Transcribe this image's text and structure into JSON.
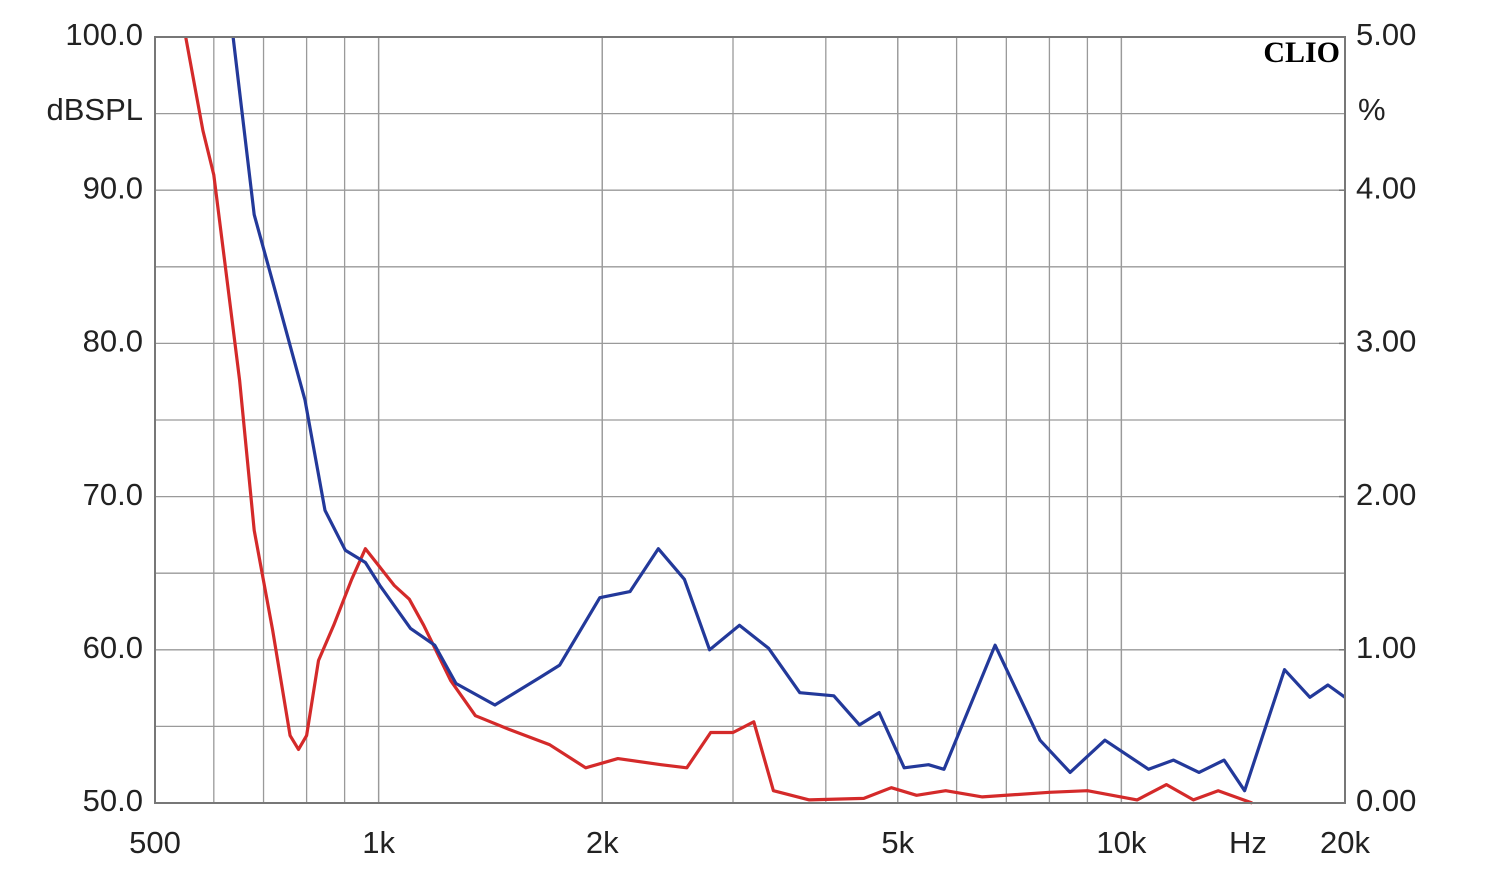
{
  "chart_data": {
    "type": "line",
    "log_x": true,
    "grid": true,
    "annotation": "CLIO",
    "y_label": "dBSPL",
    "y2_label": "%",
    "x_label": "Hz",
    "xlim": [
      500,
      20000
    ],
    "xticks": [
      500,
      {
        "value": 1000,
        "label": "1k"
      },
      {
        "value": 2000,
        "label": "2k"
      },
      {
        "value": 5000,
        "label": "5k"
      },
      {
        "value": 10000,
        "label": "10k"
      },
      {
        "value": 20000,
        "label": "20k"
      }
    ],
    "ylim": [
      50,
      100
    ],
    "yticks": [
      {
        "value": 50,
        "label": "50.0"
      },
      {
        "value": 60,
        "label": "60.0"
      },
      {
        "value": 70,
        "label": "70.0"
      },
      {
        "value": 80,
        "label": "80.0"
      },
      {
        "value": 90,
        "label": "90.0"
      },
      {
        "value": 100,
        "label": "100.0"
      }
    ],
    "y2lim": [
      0,
      5
    ],
    "y2ticks": [
      {
        "value": 0,
        "label": "0.00"
      },
      {
        "value": 1,
        "label": "1.00"
      },
      {
        "value": 2,
        "label": "2.00"
      },
      {
        "value": 3,
        "label": "3.00"
      },
      {
        "value": 4,
        "label": "4.00"
      },
      {
        "value": 5,
        "label": "5.00"
      }
    ],
    "series": [
      {
        "color": "#d42a2a",
        "axis": "y2",
        "x": [
          550,
          580,
          600,
          620,
          650,
          680,
          720,
          760,
          780,
          800,
          830,
          870,
          920,
          960,
          1000,
          1050,
          1100,
          1150,
          1250,
          1350,
          1500,
          1700,
          1900,
          2100,
          2400,
          2600,
          2800,
          3000,
          3200,
          3400,
          3800,
          4500,
          4900,
          5300,
          5800,
          6500,
          8000,
          9000,
          10500,
          11500,
          12500,
          13500,
          15000
        ],
        "values": [
          5.0,
          4.39,
          4.1,
          3.55,
          2.76,
          1.78,
          1.13,
          0.44,
          0.35,
          0.44,
          0.93,
          1.16,
          1.46,
          1.66,
          1.55,
          1.42,
          1.33,
          1.16,
          0.8,
          0.57,
          0.48,
          0.38,
          0.23,
          0.29,
          0.25,
          0.23,
          0.46,
          0.46,
          0.53,
          0.08,
          0.02,
          0.03,
          0.1,
          0.05,
          0.08,
          0.04,
          0.07,
          0.08,
          0.02,
          0.12,
          0.02,
          0.08,
          0
        ]
      },
      {
        "color": "#23399a",
        "axis": "y2",
        "x": [
          637,
          680,
          725,
          796,
          847,
          902,
          960,
          1004,
          1104,
          1190,
          1271,
          1434,
          1650,
          1753,
          1985,
          2180,
          2380,
          2580,
          2790,
          3060,
          3350,
          3690,
          4100,
          4440,
          4720,
          5100,
          5500,
          5770,
          6760,
          7770,
          8530,
          9500,
          10880,
          11750,
          12720,
          13750,
          14650,
          16580,
          17940,
          18970,
          20000
        ],
        "values": [
          5.0,
          3.84,
          3.35,
          2.63,
          1.91,
          1.65,
          1.57,
          1.42,
          1.14,
          1.03,
          0.78,
          0.64,
          0.82,
          0.9,
          1.34,
          1.38,
          1.66,
          1.46,
          1.0,
          1.16,
          1.01,
          0.72,
          0.7,
          0.51,
          0.59,
          0.23,
          0.25,
          0.22,
          1.03,
          0.41,
          0.2,
          0.41,
          0.22,
          0.28,
          0.2,
          0.28,
          0.08,
          0.87,
          0.69,
          0.77,
          0.69
        ]
      }
    ]
  }
}
